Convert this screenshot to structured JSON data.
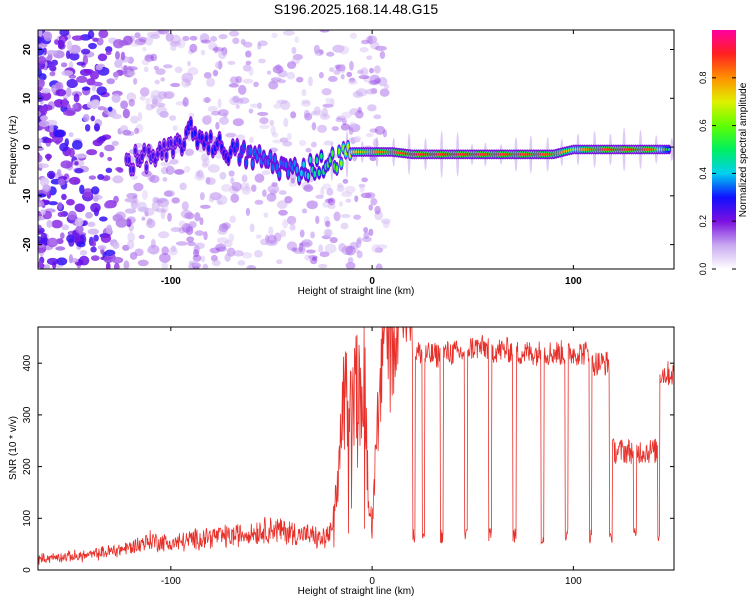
{
  "title": "S196.2025.168.14.48.G15",
  "chart_data": [
    {
      "type": "heatmap",
      "xlabel": "Height of straight line (km)",
      "ylabel": "Frequency (Hz)",
      "xlim": [
        -166,
        150
      ],
      "ylim": [
        -25,
        24
      ],
      "xticks": [
        -100,
        0,
        100
      ],
      "yticks": [
        -20,
        -10,
        0,
        10,
        20
      ],
      "colorbar": {
        "label": "Normalized spectral amplitude",
        "range": [
          0,
          1
        ],
        "ticks": [
          0.0,
          0.2,
          0.4,
          0.6,
          0.8
        ]
      },
      "ridge_frequency": {
        "x": [
          -120,
          -110,
          -100,
          -90,
          -80,
          -70,
          -60,
          -50,
          -40,
          -30,
          -20,
          -10,
          0,
          10,
          20,
          30,
          40,
          50,
          60,
          70,
          80,
          90,
          100,
          110,
          120,
          130,
          140,
          148
        ],
        "y": [
          -3,
          -2,
          -1,
          3,
          1,
          -1,
          -2,
          -3,
          -5,
          -4,
          -3,
          -1,
          -1,
          -1,
          -1.5,
          -1.5,
          -1.5,
          -1.5,
          -1.5,
          -1.5,
          -1.5,
          -1.5,
          -0.5,
          -0.5,
          -0.5,
          -0.5,
          -0.5,
          -0.5
        ]
      },
      "ridge_amplitude": {
        "x": [
          -120,
          -110,
          -100,
          -90,
          -80,
          -70,
          -60,
          -50,
          -40,
          -30,
          -20,
          -10,
          0,
          10,
          20,
          30,
          40,
          50,
          60,
          70,
          80,
          90,
          100,
          110,
          120,
          130,
          140,
          148
        ],
        "a": [
          0.25,
          0.25,
          0.25,
          0.3,
          0.3,
          0.3,
          0.35,
          0.35,
          0.35,
          0.45,
          0.55,
          0.7,
          0.8,
          0.85,
          0.9,
          0.9,
          0.9,
          0.9,
          0.88,
          0.88,
          0.88,
          0.85,
          0.7,
          0.85,
          0.9,
          0.9,
          0.85,
          0.45
        ]
      }
    },
    {
      "type": "line",
      "xlabel": "Height of straight line (km)",
      "ylabel": "SNR (10 * v/v)",
      "xlim": [
        -166,
        150
      ],
      "ylim": [
        0,
        470
      ],
      "xticks": [
        -100,
        0,
        100
      ],
      "yticks": [
        0,
        100,
        200,
        300,
        400
      ],
      "color": "#e8302a",
      "series": [
        {
          "x": [
            -166,
            -150,
            -140,
            -130,
            -120,
            -110,
            -100,
            -90,
            -80,
            -70,
            -60,
            -50,
            -40,
            -30,
            -25,
            -20,
            -17,
            -15,
            -12,
            -10,
            -8,
            -6,
            -4,
            -2,
            0,
            2,
            4,
            6,
            8,
            10,
            12,
            14,
            16,
            18,
            20
          ],
          "y": [
            15,
            18,
            20,
            25,
            30,
            40,
            35,
            40,
            45,
            45,
            50,
            55,
            50,
            45,
            40,
            50,
            110,
            220,
            230,
            210,
            250,
            230,
            280,
            100,
            60,
            180,
            280,
            330,
            350,
            320,
            340,
            360,
            380,
            410,
            420
          ]
        }
      ],
      "segments": [
        {
          "x_start": 21,
          "x_end": 25,
          "high": 420,
          "low": 60
        },
        {
          "x_start": 25,
          "x_end": 34,
          "high": 415,
          "low": 60
        },
        {
          "x_start": 34,
          "x_end": 46,
          "high": 420,
          "low": 60
        },
        {
          "x_start": 46,
          "x_end": 58,
          "high": 430,
          "low": 60
        },
        {
          "x_start": 58,
          "x_end": 70,
          "high": 425,
          "low": 60
        },
        {
          "x_start": 70,
          "x_end": 84,
          "high": 420,
          "low": 60
        },
        {
          "x_start": 84,
          "x_end": 96,
          "high": 420,
          "low": 60
        },
        {
          "x_start": 96,
          "x_end": 108,
          "high": 420,
          "low": 60
        },
        {
          "x_start": 108,
          "x_end": 118,
          "high": 400,
          "low": 60
        },
        {
          "x_start": 118,
          "x_end": 130,
          "high": 230,
          "low": 60
        },
        {
          "x_start": 130,
          "x_end": 142,
          "high": 230,
          "low": 60
        },
        {
          "x_start": 142,
          "x_end": 150,
          "high": 380,
          "low": 60
        }
      ]
    }
  ]
}
